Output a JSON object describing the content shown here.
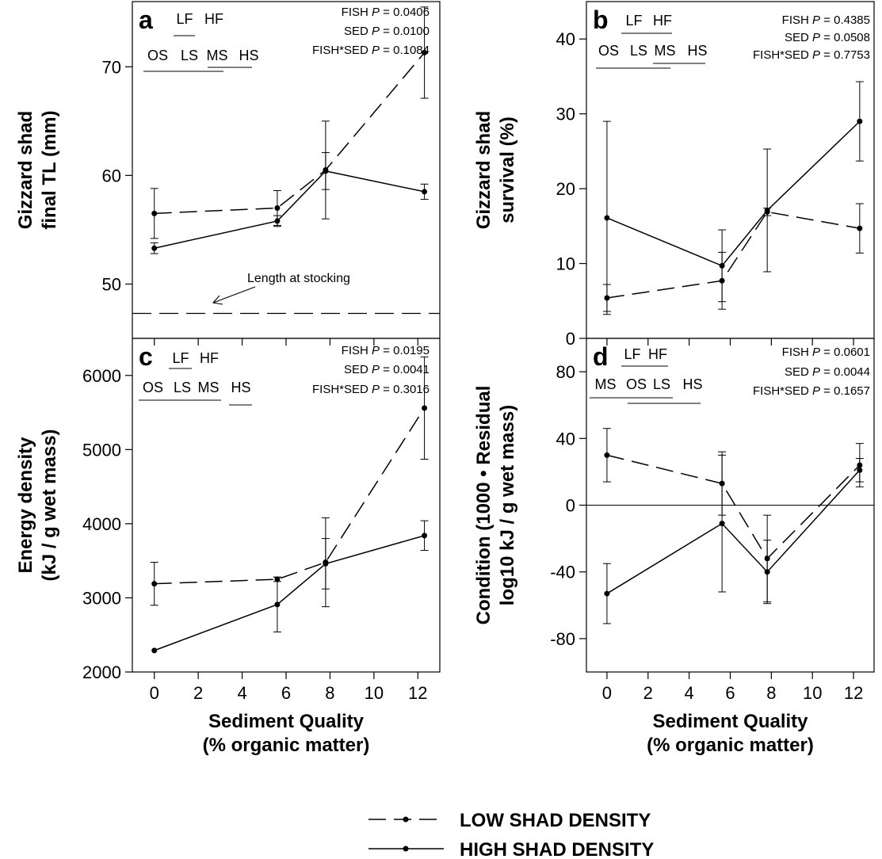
{
  "chart_data": [
    {
      "type": "line",
      "panel": "a",
      "ylabel": [
        "Gizzard shad",
        "final TL (mm)"
      ],
      "xlim": [
        -1,
        13
      ],
      "ylim": [
        45,
        76
      ],
      "yticks": [
        50,
        60,
        70
      ],
      "xticks": [
        0,
        2,
        4,
        6,
        8,
        10,
        12
      ],
      "x": [
        0,
        5.6,
        7.8,
        12.3
      ],
      "series": [
        {
          "name": "LOW SHAD DENSITY",
          "style": "dashed",
          "values": [
            56.5,
            57.0,
            60.5,
            71.3
          ],
          "err": [
            2.3,
            1.6,
            4.5,
            4.2
          ]
        },
        {
          "name": "HIGH SHAD DENSITY",
          "style": "solid",
          "values": [
            53.3,
            55.8,
            60.4,
            58.5
          ],
          "err": [
            0.5,
            0.5,
            1.7,
            0.7
          ]
        }
      ],
      "stats": {
        "fish_label": "FISH",
        "fish_p": "0.0406",
        "sed_label": "SED",
        "sed_p": "0.0100",
        "int_label": "FISH*SED",
        "int_p": "0.1084"
      },
      "groups_top": [
        "LF",
        "HF"
      ],
      "groups_bottom": [
        "OS",
        "LS",
        "MS",
        "HS"
      ],
      "reference_line": {
        "y": 47.3,
        "style": "dashed"
      },
      "annotation": "Length at stocking"
    },
    {
      "type": "line",
      "panel": "b",
      "ylabel": [
        "Gizzard shad",
        "survival (%)"
      ],
      "xlim": [
        -1,
        13
      ],
      "ylim": [
        0,
        45
      ],
      "yticks": [
        0,
        10,
        20,
        30,
        40
      ],
      "xticks": [
        0,
        2,
        4,
        6,
        8,
        10,
        12
      ],
      "x": [
        0,
        5.6,
        7.8,
        12.3
      ],
      "series": [
        {
          "name": "LOW SHAD DENSITY",
          "style": "dashed",
          "values": [
            5.4,
            7.7,
            16.9,
            14.7
          ],
          "err": [
            1.8,
            3.8,
            0.5,
            3.3
          ]
        },
        {
          "name": "HIGH SHAD DENSITY",
          "style": "solid",
          "values": [
            16.1,
            9.7,
            17.1,
            29.0
          ],
          "err": [
            12.9,
            4.8,
            8.2,
            5.3
          ]
        }
      ],
      "stats": {
        "fish_label": "FISH",
        "fish_p": "0.4385",
        "sed_label": "SED",
        "sed_p": "0.0508",
        "int_label": "FISH*SED",
        "int_p": "0.7753"
      },
      "groups_top": [
        "LF",
        "HF"
      ],
      "groups_bottom": [
        "OS",
        "LS",
        "MS",
        "HS"
      ]
    },
    {
      "type": "line",
      "panel": "c",
      "ylabel": [
        "Energy density",
        "(kJ / g wet mass)"
      ],
      "xlabel": [
        "Sediment Quality",
        "(% organic matter)"
      ],
      "xlim": [
        -1,
        13
      ],
      "ylim": [
        2000,
        6500
      ],
      "yticks": [
        2000,
        3000,
        4000,
        5000,
        6000
      ],
      "xticks": [
        0,
        2,
        4,
        6,
        8,
        10,
        12
      ],
      "x": [
        0,
        5.6,
        7.8,
        12.3
      ],
      "series": [
        {
          "name": "LOW SHAD DENSITY",
          "style": "dashed",
          "values": [
            3190,
            3250,
            3480,
            5560
          ],
          "err": [
            290,
            30,
            600,
            690
          ]
        },
        {
          "name": "HIGH SHAD DENSITY",
          "style": "solid",
          "values": [
            2290,
            2910,
            3460,
            3840
          ],
          "err": [
            0,
            370,
            340,
            200
          ]
        }
      ],
      "stats": {
        "fish_label": "FISH",
        "fish_p": "0.0195",
        "sed_label": "SED",
        "sed_p": "0.0041",
        "int_label": "FISH*SED",
        "int_p": "0.3016"
      },
      "groups_top": [
        "LF",
        "HF"
      ],
      "groups_bottom": [
        "OS",
        "LS",
        "MS",
        "HS"
      ]
    },
    {
      "type": "line",
      "panel": "d",
      "ylabel": [
        "Condition (1000 • Residual",
        "log10 kJ / g wet mass)"
      ],
      "xlabel": [
        "Sediment Quality",
        "(% organic matter)"
      ],
      "xlim": [
        -1,
        13
      ],
      "ylim": [
        -100,
        100
      ],
      "yticks": [
        -80,
        -40,
        0,
        40,
        80
      ],
      "xticks": [
        0,
        2,
        4,
        6,
        8,
        10,
        12
      ],
      "x": [
        0,
        5.6,
        7.8,
        12.3
      ],
      "series": [
        {
          "name": "LOW SHAD DENSITY",
          "style": "dashed",
          "values": [
            30,
            13,
            -32,
            24
          ],
          "err": [
            16,
            19,
            26,
            13
          ]
        },
        {
          "name": "HIGH SHAD DENSITY",
          "style": "solid",
          "values": [
            -53,
            -11,
            -40,
            21
          ],
          "err": [
            18,
            41,
            19,
            7
          ]
        }
      ],
      "zero_line": true,
      "stats": {
        "fish_label": "FISH",
        "fish_p": "0.0601",
        "sed_label": "SED",
        "sed_p": "0.0044",
        "int_label": "FISH*SED",
        "int_p": "0.1657"
      },
      "groups_top": [
        "LF",
        "HF"
      ],
      "groups_bottom": [
        "MS",
        "OS",
        "LS",
        "HS"
      ]
    }
  ],
  "legend": {
    "items": [
      {
        "label": "LOW SHAD DENSITY",
        "style": "dashed"
      },
      {
        "label": "HIGH SHAD DENSITY",
        "style": "solid"
      }
    ]
  }
}
